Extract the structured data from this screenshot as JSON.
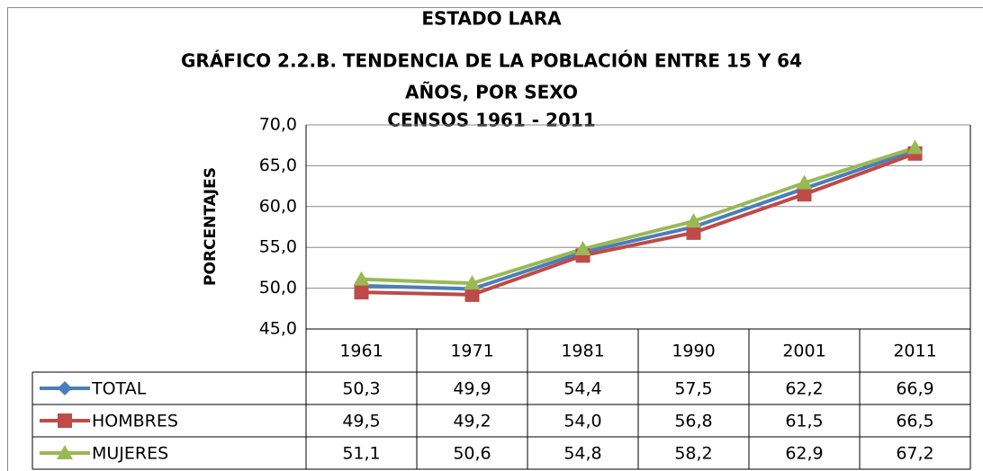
{
  "chart_data": {
    "type": "line",
    "title": [
      "ESTADO LARA",
      "GRÁFICO 2.2.B. TENDENCIA DE LA POBLACIÓN ENTRE 15 Y 64",
      "AÑOS, POR SEXO",
      "CENSOS 1961 - 2011"
    ],
    "y_label": "PORCENTAJES",
    "categories": [
      "1961",
      "1971",
      "1981",
      "1990",
      "2001",
      "2011"
    ],
    "series": [
      {
        "name": "TOTAL",
        "color": "#4a7ebb",
        "marker": "diamond",
        "values": [
          50.3,
          49.9,
          54.4,
          57.5,
          62.2,
          66.9
        ],
        "value_labels": [
          "50,3",
          "49,9",
          "54,4",
          "57,5",
          "62,2",
          "66,9"
        ]
      },
      {
        "name": "HOMBRES",
        "color": "#be4b48",
        "marker": "square",
        "values": [
          49.5,
          49.2,
          54.0,
          56.8,
          61.5,
          66.5
        ],
        "value_labels": [
          "49,5",
          "49,2",
          "54,0",
          "56,8",
          "61,5",
          "66,5"
        ]
      },
      {
        "name": "MUJERES",
        "color": "#98b954",
        "marker": "triangle",
        "values": [
          51.1,
          50.6,
          54.8,
          58.2,
          62.9,
          67.2
        ],
        "value_labels": [
          "51,1",
          "50,6",
          "54,8",
          "58,2",
          "62,9",
          "67,2"
        ]
      }
    ],
    "ylim": [
      45,
      70
    ],
    "yticks": [
      {
        "value": 45,
        "label": "45,0"
      },
      {
        "value": 50,
        "label": "50,0"
      },
      {
        "value": 55,
        "label": "55,0"
      },
      {
        "value": 60,
        "label": "60,0"
      },
      {
        "value": 65,
        "label": "65,0"
      },
      {
        "value": 70,
        "label": "70,0"
      }
    ],
    "grid": true
  }
}
